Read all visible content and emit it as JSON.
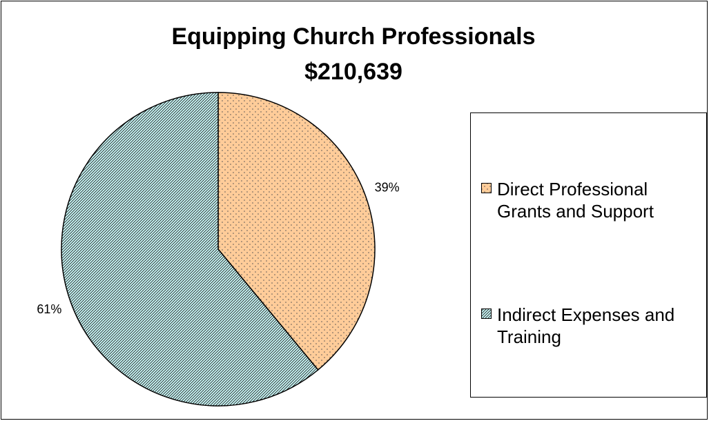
{
  "chart_data": {
    "type": "pie",
    "title": "Equipping Church Professionals",
    "subtitle": "$210,639",
    "categories": [
      "Direct Professional Grants and Support",
      "Indirect Expenses and Training"
    ],
    "values": [
      39,
      61
    ],
    "value_labels": [
      "39%",
      "61%"
    ],
    "colors": [
      "#ffcc99",
      "#ccffff"
    ],
    "legend": "right"
  }
}
